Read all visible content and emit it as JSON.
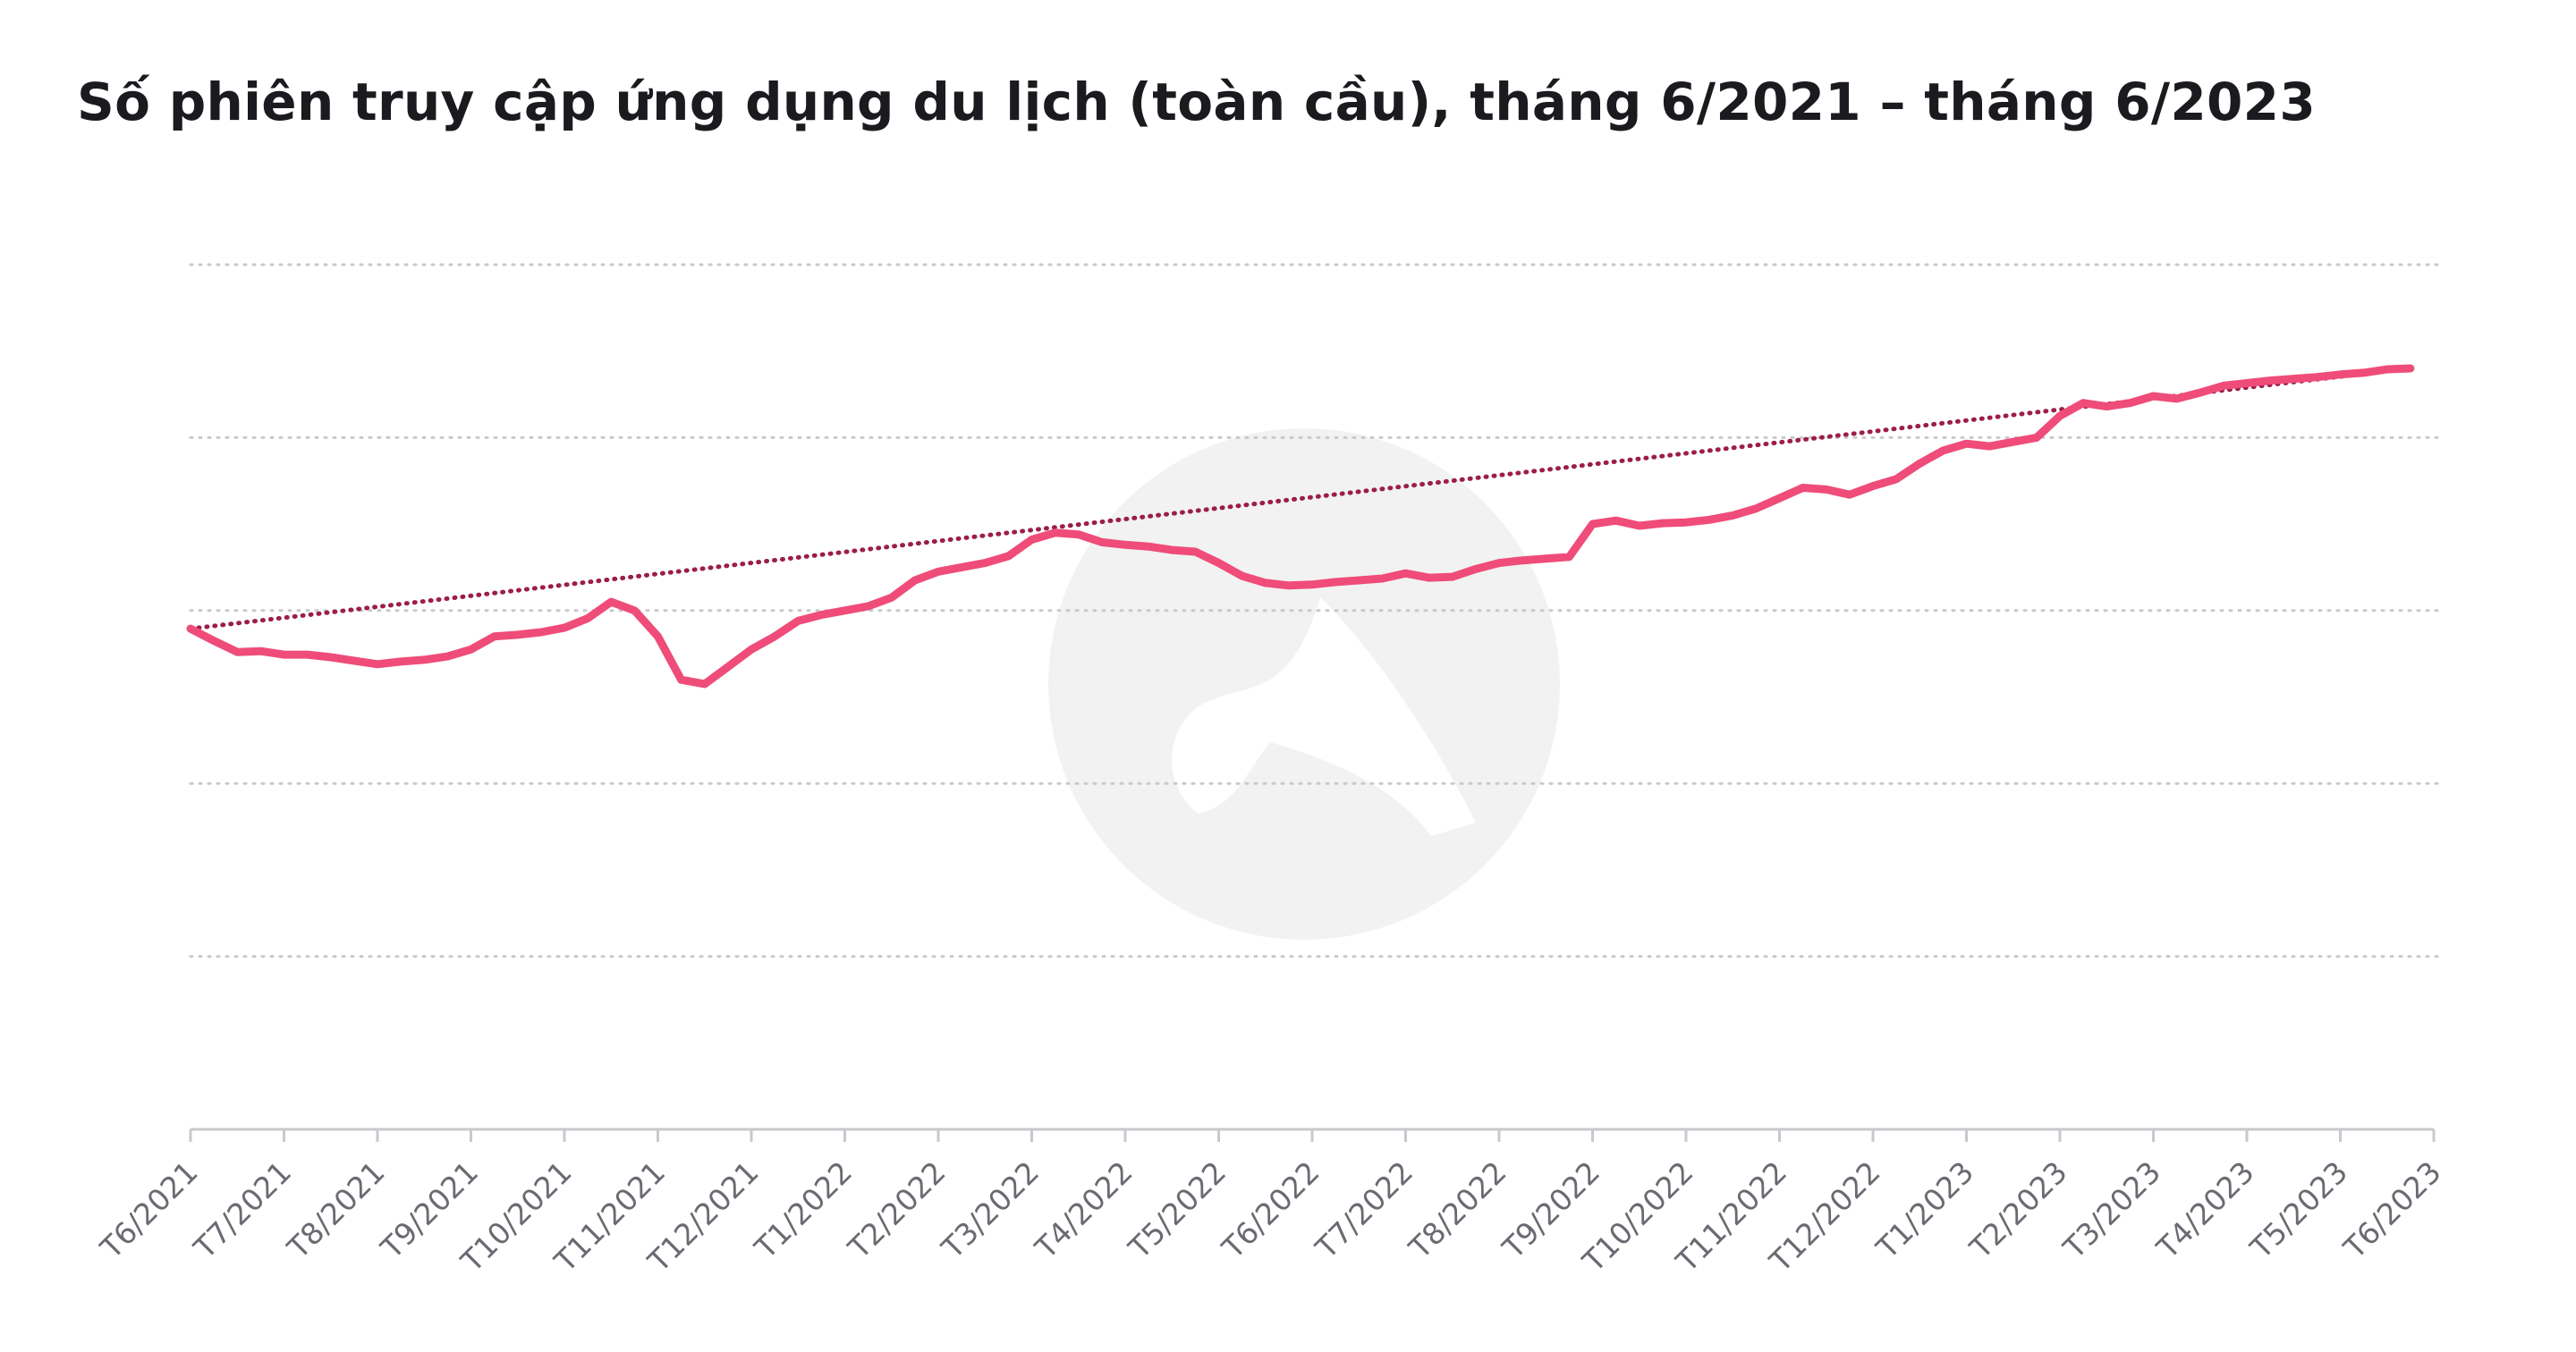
{
  "title": "Số phiên truy cập ứng dụng du lịch (toàn cầu), tháng 6/2021 – tháng 6/2023",
  "chart_data": {
    "type": "line",
    "title": "Số phiên truy cập ứng dụng du lịch (toàn cầu), tháng 6/2021 – tháng 6/2023",
    "xlabel": "",
    "ylabel": "",
    "y_tick_labels_shown": false,
    "grid": "horizontal dotted",
    "ylim": [
      0,
      100
    ],
    "x_range": [
      0,
      24
    ],
    "categories": [
      "T6/2021",
      "T7/2021",
      "T8/2021",
      "T9/2021",
      "T10/2021",
      "T11/2021",
      "T12/2021",
      "T1/2022",
      "T2/2022",
      "T3/2022",
      "T4/2022",
      "T5/2022",
      "T6/2022",
      "T7/2022",
      "T8/2022",
      "T9/2022",
      "T10/2022",
      "T11/2022",
      "T12/2022",
      "T1/2023",
      "T2/2023",
      "T3/2023",
      "T4/2023",
      "T5/2023",
      "T6/2023"
    ],
    "colors": {
      "series": "#ef4c79",
      "trend": "#9c1d4a",
      "grid": "#c9c9cd",
      "axis": "#c9c9cd",
      "watermark": "#f2f2f2"
    },
    "series": [
      {
        "style": "solid",
        "x": [
          0,
          0.25,
          0.5,
          0.75,
          1,
          1.25,
          1.5,
          1.75,
          2,
          2.25,
          2.5,
          2.75,
          3,
          3.25,
          3.5,
          3.75,
          4,
          4.25,
          4.5,
          4.75,
          5,
          5.25,
          5.5,
          5.75,
          6,
          6.25,
          6.5,
          6.75,
          7,
          7.25,
          7.5,
          7.75,
          8,
          8.25,
          8.5,
          8.75,
          9,
          9.25,
          9.5,
          9.75,
          10,
          10.25,
          10.5,
          10.75,
          11,
          11.25,
          11.5,
          11.75,
          12,
          12.25,
          12.5,
          12.75,
          13,
          13.25,
          13.5,
          13.75,
          14,
          14.25,
          14.5,
          14.75,
          15,
          15.25,
          15.5,
          15.75,
          16,
          16.25,
          16.5,
          16.75,
          17,
          17.25,
          17.5,
          17.75,
          18,
          18.25,
          18.5,
          18.75,
          19,
          19.25,
          19.5,
          19.75,
          20,
          20.25,
          20.5,
          20.75,
          21,
          21.25,
          21.5,
          21.75,
          22,
          22.25,
          22.5,
          22.75,
          23,
          23.25,
          23.5,
          23.75
        ],
        "values": [
          57.9,
          56.5,
          55.2,
          55.3,
          54.9,
          54.9,
          54.6,
          54.2,
          53.8,
          54.1,
          54.3,
          54.7,
          55.5,
          57.0,
          57.2,
          57.5,
          58.0,
          59.1,
          61.0,
          60.0,
          57.0,
          52.0,
          51.5,
          53.5,
          55.5,
          57.0,
          58.8,
          59.5,
          60.0,
          60.5,
          61.5,
          63.5,
          64.5,
          65.0,
          65.5,
          66.3,
          68.2,
          69.0,
          68.8,
          67.9,
          67.6,
          67.4,
          67.0,
          66.8,
          65.5,
          64.0,
          63.2,
          62.9,
          63.0,
          63.3,
          63.5,
          63.7,
          64.3,
          63.8,
          63.9,
          64.8,
          65.5,
          65.8,
          66.0,
          66.2,
          70.0,
          70.4,
          69.8,
          70.1,
          70.2,
          70.5,
          71.0,
          71.8,
          73.0,
          74.2,
          74.0,
          73.4,
          74.4,
          75.2,
          77.0,
          78.5,
          79.3,
          79.0,
          79.5,
          80.0,
          82.5,
          84.0,
          83.6,
          84.0,
          84.8,
          84.5,
          85.2,
          86.0,
          86.3,
          86.6,
          86.8,
          87.0,
          87.3,
          87.5,
          87.9,
          88.0
        ]
      },
      {
        "name": "",
        "style": "dotted",
        "x": [
          0,
          23.75
        ],
        "values": [
          57.9,
          88.0
        ]
      }
    ]
  }
}
